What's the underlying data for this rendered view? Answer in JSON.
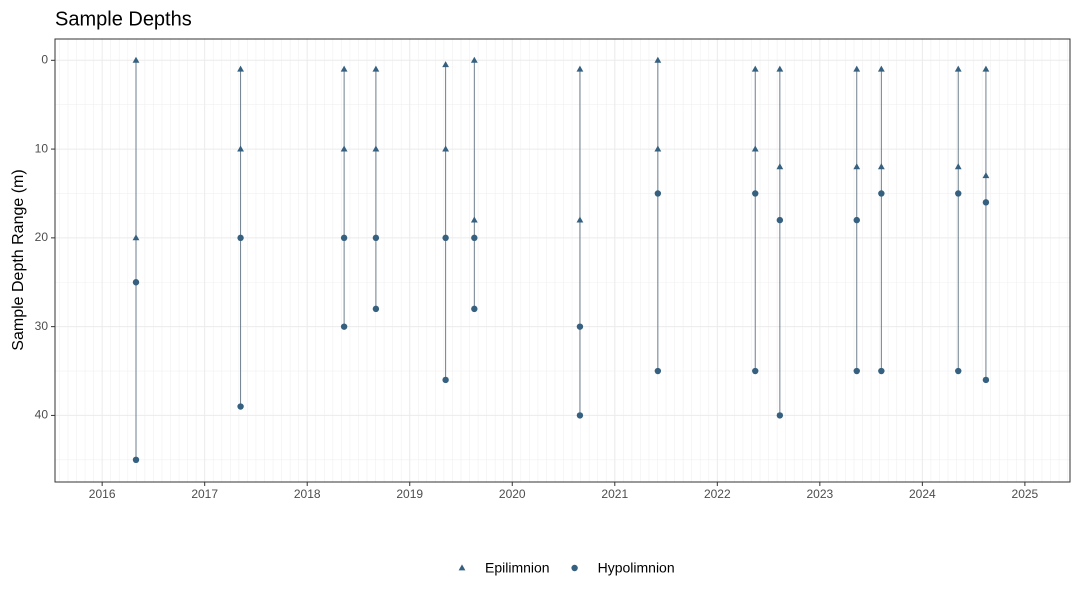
{
  "chart_data": {
    "type": "scatter",
    "title": "Sample Depths",
    "y_label": "Sample Depth Range (m)",
    "xlim": [
      2015.54,
      2025.44
    ],
    "xticks": [
      2016,
      2017,
      2018,
      2019,
      2020,
      2021,
      2022,
      2023,
      2024,
      2025
    ],
    "ylim": [
      -2.4,
      47.5
    ],
    "yticks": [
      0,
      10,
      20,
      30,
      40
    ],
    "y_reversed": true,
    "grid": true,
    "range_line_color": "#6e7f8f",
    "legend_position": "bottom",
    "series": [
      {
        "name": "Epilimnion",
        "shape": "triangle",
        "color": "#35607f",
        "x": [
          2016.33,
          2016.33,
          2017.35,
          2017.35,
          2018.36,
          2018.36,
          2018.67,
          2018.67,
          2019.35,
          2019.35,
          2019.63,
          2019.63,
          2020.66,
          2020.66,
          2021.42,
          2021.42,
          2022.37,
          2022.37,
          2022.61,
          2022.61,
          2023.36,
          2023.36,
          2023.6,
          2023.6,
          2024.35,
          2024.35,
          2024.62,
          2024.62
        ],
        "values": [
          0,
          20,
          1,
          10,
          1,
          10,
          1,
          10,
          0.5,
          10,
          0,
          18,
          1,
          18,
          0,
          10,
          1,
          10,
          1,
          12,
          1,
          12,
          1,
          12,
          1,
          12,
          1,
          13
        ]
      },
      {
        "name": "Hypolimnion",
        "shape": "circle",
        "color": "#35607f",
        "x": [
          2016.33,
          2016.33,
          2017.35,
          2017.35,
          2018.36,
          2018.36,
          2018.67,
          2018.67,
          2019.35,
          2019.35,
          2019.63,
          2019.63,
          2020.66,
          2020.66,
          2021.42,
          2021.42,
          2022.37,
          2022.37,
          2022.61,
          2022.61,
          2023.36,
          2023.36,
          2023.6,
          2023.6,
          2024.35,
          2024.35,
          2024.62,
          2024.62
        ],
        "values": [
          25,
          45,
          20,
          39,
          20,
          30,
          20,
          28,
          20,
          36,
          20,
          28,
          30,
          40,
          15,
          35,
          15,
          35,
          18,
          40,
          18,
          35,
          15,
          35,
          15,
          35,
          16,
          36
        ]
      }
    ]
  }
}
